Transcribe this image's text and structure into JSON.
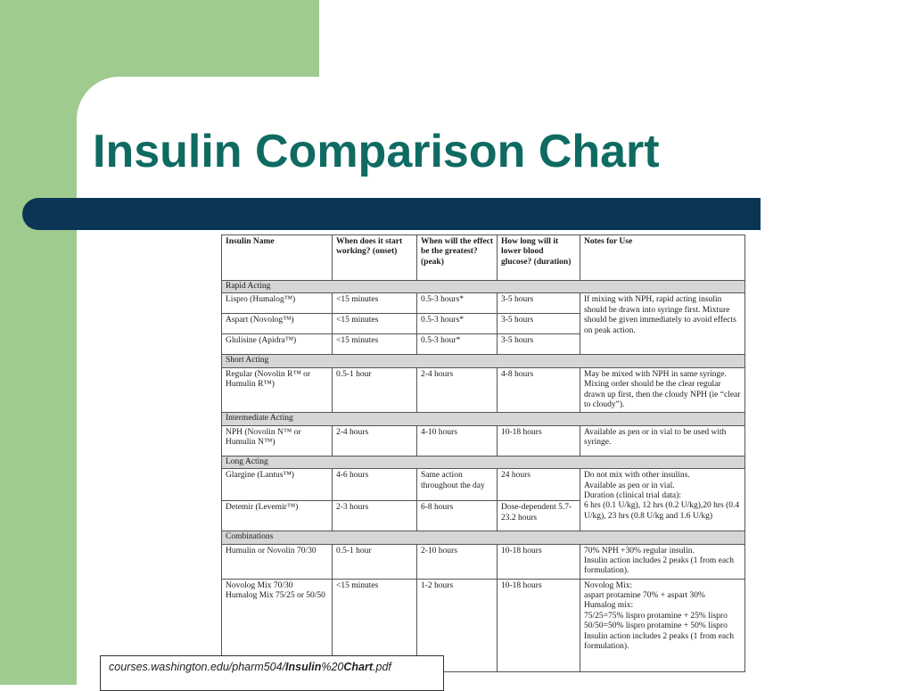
{
  "slide": {
    "title": "Insulin Comparison Chart",
    "colors": {
      "green": "#9fcb8f",
      "title": "#0f6b62",
      "bar": "#0a3555"
    }
  },
  "table": {
    "headers": [
      "Insulin Name",
      "When does it start working? (onset)",
      "When will the effect be the greatest? (peak)",
      "How long will it lower blood glucose? (duration)",
      "Notes for Use"
    ],
    "sections": {
      "rapid": "Rapid Acting",
      "short": "Short Acting",
      "intermediate": "Intermediate Acting",
      "long": "Long Acting",
      "combinations": "Combinations"
    },
    "rows": {
      "lispro": {
        "name": "Lispro (Humalog™)",
        "onset": "<15 minutes",
        "peak": "0.5-3 hours*",
        "duration": "3-5 hours"
      },
      "aspart": {
        "name": "Aspart (Novolog™)",
        "onset": "<15 minutes",
        "peak": "0.5-3 hours*",
        "duration": "3-5 hours"
      },
      "glulisine": {
        "name": "Glulisine (Apidra™)",
        "onset": "<15 minutes",
        "peak": "0.5-3 hour*",
        "duration": "3-5 hours"
      },
      "rapid_notes": "If mixing with NPH, rapid acting insulin should be drawn into syringe first.  Mixture should be given immediately to avoid effects on peak action.",
      "regular": {
        "name": "Regular (Novolin R™ or Humulin R™)",
        "onset": "0.5-1 hour",
        "peak": "2-4 hours",
        "duration": "4-8 hours",
        "notes": "May be mixed with NPH in same syringe.  Mixing order should be the clear regular drawn up first, then the cloudy NPH (ie “clear to cloudy”)."
      },
      "nph": {
        "name": "NPH (Novolin N™ or Humulin N™)",
        "onset": "2-4 hours",
        "peak": "4-10 hours",
        "duration": "10-18 hours",
        "notes": "Available as pen or in vial to be used with syringe."
      },
      "glargine": {
        "name": "Glargine (Lantus™)",
        "onset": "4-6 hours",
        "peak": "Same action throughout the day",
        "duration": "24 hours"
      },
      "detemir": {
        "name": "Detemir (Levemir™)",
        "onset": "2-3 hours",
        "peak": "6-8 hours",
        "duration": "Dose-dependent 5.7-23.2 hours"
      },
      "long_notes": "Do not mix with other insulins.\nAvailable as pen or in vial.\nDuration (clinical trial data):\n6 hrs (0.1 U/kg), 12 hrs (0.2 U/kg),20 hrs (0.4 U/kg), 23 hrs (0.8 U/kg and 1.6 U/kg)",
      "humulin_70_30": {
        "name": "Humulin or Novolin 70/30",
        "onset": "0.5-1 hour",
        "peak": "2-10 hours",
        "duration": "10-18 hours",
        "notes": "70% NPH +30% regular insulin.\nInsulin action includes 2 peaks (1 from each formulation)."
      },
      "novolog_mix": {
        "name": "Novolog Mix 70/30\nHumalog Mix 75/25 or 50/50",
        "onset": "<15 minutes",
        "peak": "1-2 hours",
        "duration": "10-18 hours",
        "notes": "Novolog Mix:\naspart protamine 70% + aspart 30%\nHumalog mix:\n75/25=75% lispro protamine + 25% lispro\n50/50=50% lispro protamine + 50% lispro\nInsulin action includes 2 peaks (1 from each formulation)."
      }
    }
  },
  "source": {
    "part1": "courses.washington.edu/pharm504/",
    "part2": "Insulin",
    "part3": "%20",
    "part4": "Chart",
    "part5": ".pdf"
  }
}
